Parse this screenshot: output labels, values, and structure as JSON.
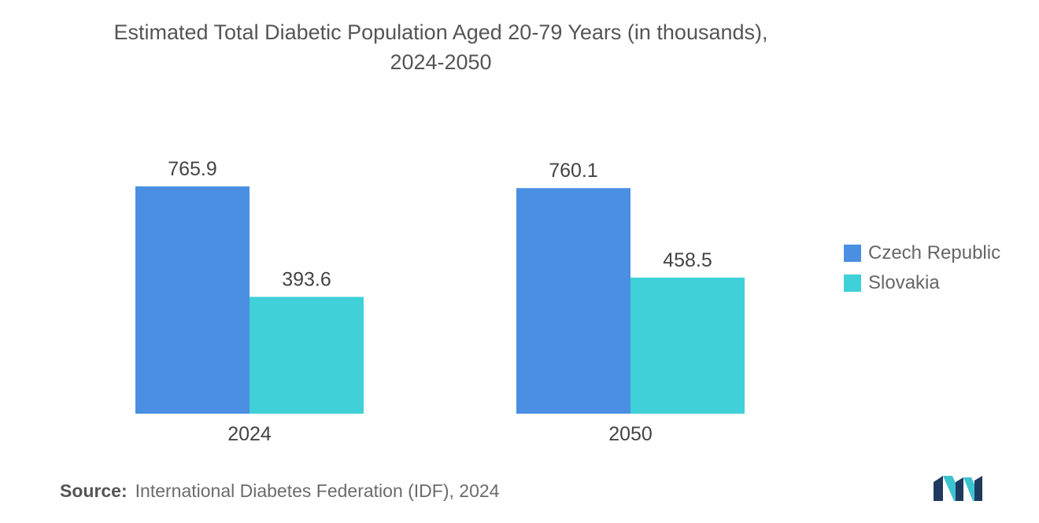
{
  "chart_data": {
    "type": "bar",
    "title": [
      "Estimated Total Diabetic Population Aged 20-79 Years (in thousands),",
      "2024-2050"
    ],
    "categories": [
      "2024",
      "2050"
    ],
    "series": [
      {
        "name": "Czech Republic",
        "color": "#4a8fe2",
        "values": [
          765.9,
          760.1
        ]
      },
      {
        "name": "Slovakia",
        "color": "#40d0d8",
        "values": [
          393.6,
          458.5
        ]
      }
    ],
    "value_labels": [
      [
        "765.9",
        "760.1"
      ],
      [
        "393.6",
        "458.5"
      ]
    ],
    "xlabel": "",
    "ylabel": "",
    "ylim": [
      0,
      765.9
    ],
    "grid": false,
    "legend": "right"
  },
  "source": {
    "label": "Source:",
    "text": "International Diabetes Federation (IDF), 2024"
  },
  "logo": {
    "icon": "mordor-intelligence-logo-icon",
    "colors": [
      "#1f3a5f",
      "#3bc4d0"
    ]
  }
}
